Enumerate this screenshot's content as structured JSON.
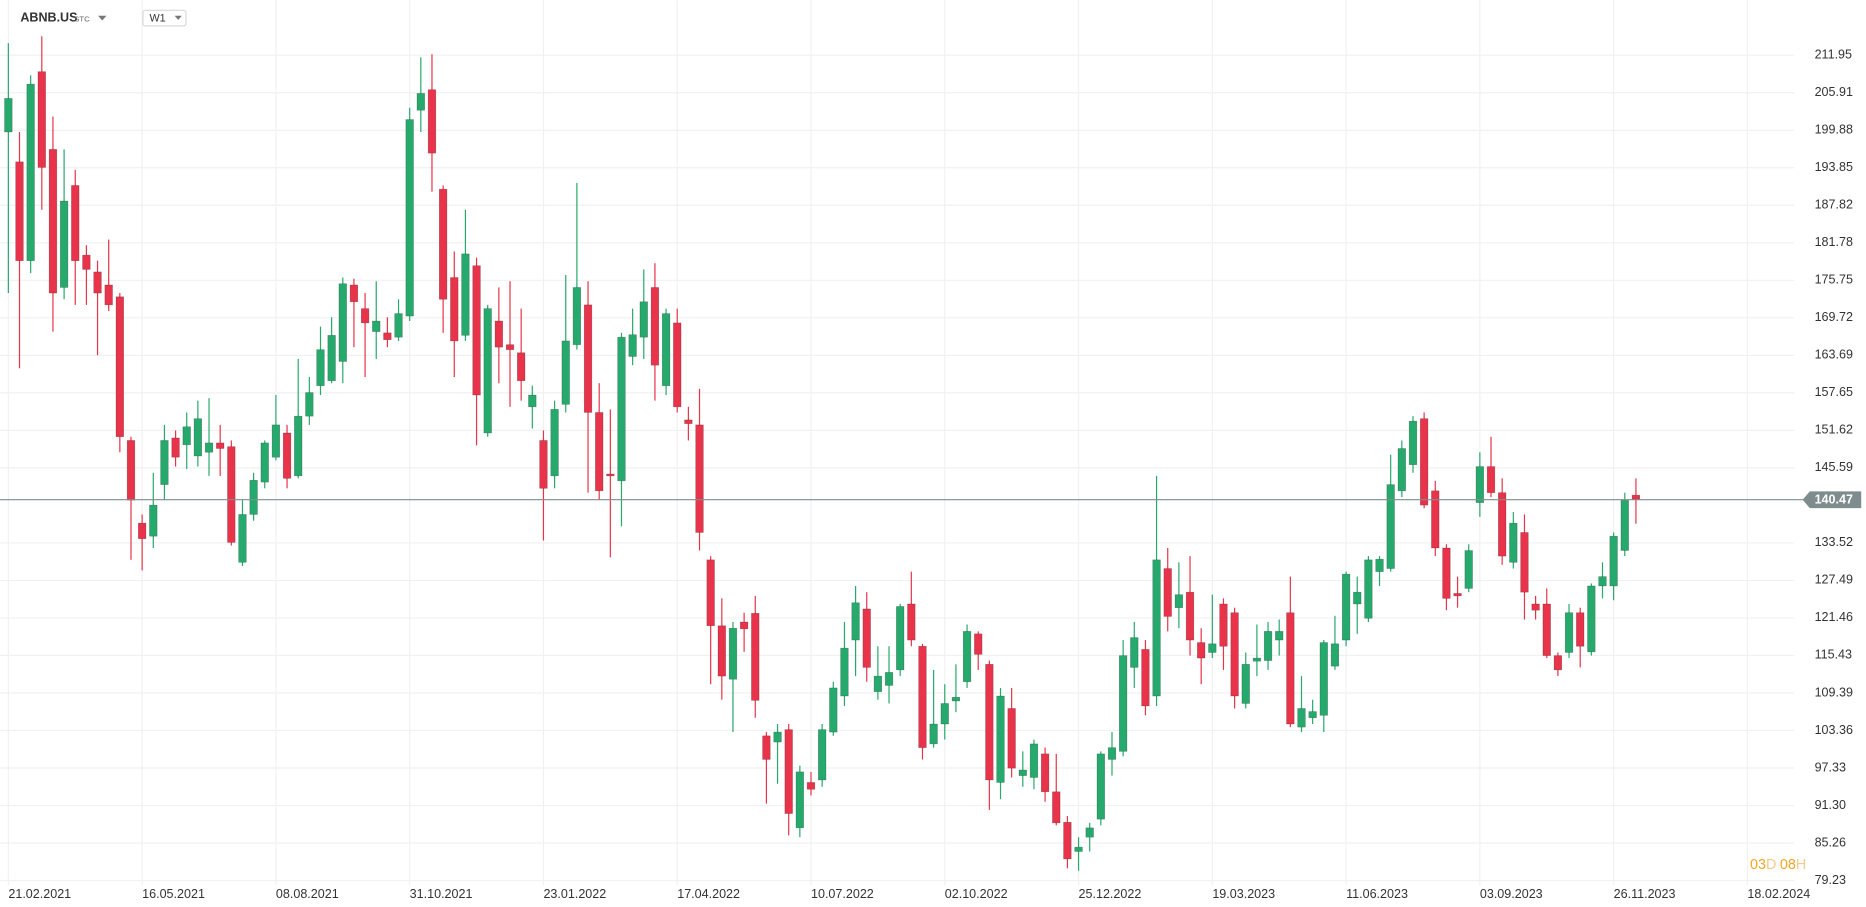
{
  "header": {
    "symbol": "ABNB.US",
    "market": "STC",
    "interval": "W1"
  },
  "countdown": [
    "03",
    "D",
    "08",
    "H"
  ],
  "chart_data": {
    "type": "candlestick",
    "up_color": "#26a96c",
    "down_color": "#e8334a",
    "grid": true,
    "last_price": {
      "value": 140.47,
      "color": "#7f8c8d"
    },
    "xlim": [
      -0.75,
      160.2
    ],
    "ylim": [
      78.46,
      220.8
    ],
    "xticks": [
      {
        "value": 0,
        "label": "21.02.2021"
      },
      {
        "value": 12,
        "label": "16.05.2021"
      },
      {
        "value": 24,
        "label": "08.08.2021"
      },
      {
        "value": 36,
        "label": "31.10.2021"
      },
      {
        "value": 48,
        "label": "23.01.2022"
      },
      {
        "value": 60,
        "label": "17.04.2022"
      },
      {
        "value": 72,
        "label": "10.07.2022"
      },
      {
        "value": 84,
        "label": "02.10.2022"
      },
      {
        "value": 96,
        "label": "25.12.2022"
      },
      {
        "value": 108,
        "label": "19.03.2023"
      },
      {
        "value": 120,
        "label": "11.06.2023"
      },
      {
        "value": 132,
        "label": "03.09.2023"
      },
      {
        "value": 144,
        "label": "26.11.2023"
      },
      {
        "value": 156,
        "label": "18.02.2024"
      }
    ],
    "yticks": [
      211.95,
      205.91,
      199.88,
      193.85,
      187.82,
      181.78,
      175.75,
      169.72,
      163.69,
      157.65,
      151.62,
      145.59,
      133.52,
      127.49,
      121.46,
      115.43,
      109.39,
      103.36,
      97.33,
      {
        "value": 91.3,
        "label": "91.30"
      },
      85.26,
      79.23
    ],
    "open": [
      199.6,
      194.8,
      178.9,
      209.3,
      196.8,
      174.6,
      191.0,
      179.8,
      177.1,
      175.0,
      173.1,
      150.0,
      136.7,
      134.6,
      142.9,
      150.4,
      149.3,
      147.5,
      148.1,
      149.6,
      149.0,
      130.4,
      138.1,
      143.3,
      147.3,
      151.2,
      144.3,
      153.9,
      158.8,
      159.6,
      162.7,
      175.0,
      171.2,
      167.5,
      167.3,
      166.6,
      170.0,
      203.1,
      206.4,
      190.4,
      176.2,
      166.9,
      178.1,
      151.2,
      169.2,
      165.4,
      164.1,
      155.4,
      150.0,
      144.3,
      155.8,
      165.4,
      171.8,
      154.5,
      144.6,
      143.5,
      163.5,
      166.6,
      174.6,
      158.8,
      168.9,
      153.3,
      152.5,
      130.8,
      120.2,
      111.6,
      120.8,
      122.2,
      102.5,
      101.5,
      103.5,
      87.7,
      95.0,
      95.4,
      103.1,
      108.9,
      117.9,
      122.9,
      109.6,
      110.6,
      113.1,
      123.7,
      116.9,
      101.2,
      104.4,
      108.1,
      111.2,
      118.9,
      114.0,
      95.0,
      106.9,
      96.1,
      95.8,
      99.6,
      93.5,
      88.6,
      83.9,
      86.2,
      89.1,
      98.7,
      100.0,
      113.5,
      116.4,
      108.9,
      129.4,
      123.1,
      125.6,
      117.5,
      115.9,
      123.7,
      122.3,
      107.7,
      114.5,
      114.6,
      117.9,
      122.3,
      103.9,
      105.4,
      105.8,
      113.7,
      117.9,
      123.7,
      121.4,
      128.9,
      129.4,
      141.9,
      146.1,
      153.5,
      141.9,
      132.7,
      125.4,
      126.2,
      140.0,
      145.8,
      141.6,
      130.4,
      135.2,
      123.7,
      123.7,
      115.4,
      115.9,
      122.3,
      116.0,
      126.6,
      126.6,
      132.3,
      141.2
    ],
    "high": [
      213.9,
      199.6,
      208.7,
      215.0,
      202.1,
      196.8,
      193.5,
      181.4,
      178.9,
      182.3,
      173.7,
      150.6,
      138.1,
      144.8,
      152.5,
      151.6,
      154.5,
      156.4,
      156.8,
      152.5,
      150.0,
      140.4,
      144.8,
      150.0,
      157.3,
      152.5,
      163.1,
      160.2,
      168.3,
      169.8,
      176.2,
      176.0,
      173.7,
      175.6,
      169.8,
      172.7,
      203.5,
      211.6,
      212.1,
      191.0,
      180.4,
      187.1,
      179.4,
      171.8,
      174.6,
      175.6,
      171.2,
      158.8,
      151.6,
      156.4,
      176.6,
      191.4,
      175.6,
      159.2,
      155.0,
      167.3,
      171.2,
      177.5,
      178.5,
      171.2,
      171.2,
      155.4,
      158.3,
      131.4,
      124.6,
      120.8,
      122.3,
      125.0,
      103.1,
      104.4,
      104.4,
      97.7,
      96.7,
      104.4,
      111.2,
      120.8,
      126.6,
      125.6,
      116.9,
      116.9,
      123.7,
      128.9,
      117.3,
      113.1,
      110.8,
      114.0,
      120.4,
      119.3,
      114.6,
      110.2,
      110.2,
      100.0,
      101.9,
      100.6,
      99.6,
      89.6,
      86.2,
      88.5,
      100.0,
      103.1,
      117.9,
      120.8,
      117.9,
      144.3,
      132.7,
      130.4,
      131.4,
      119.8,
      125.2,
      124.6,
      123.1,
      115.9,
      120.4,
      120.8,
      121.2,
      128.1,
      112.1,
      108.3,
      117.9,
      121.8,
      128.9,
      128.1,
      131.4,
      131.4,
      147.7,
      150.0,
      153.9,
      154.5,
      143.5,
      133.3,
      128.1,
      133.3,
      148.1,
      150.6,
      143.9,
      138.5,
      138.1,
      125.0,
      126.2,
      115.9,
      123.7,
      123.1,
      127.0,
      130.4,
      135.2,
      141.6,
      143.9
    ],
    "low": [
      173.7,
      161.6,
      176.9,
      187.1,
      167.5,
      172.7,
      171.8,
      171.8,
      163.7,
      170.8,
      148.1,
      130.8,
      129.1,
      132.7,
      140.4,
      145.8,
      145.4,
      145.8,
      144.3,
      144.3,
      133.1,
      129.8,
      137.1,
      142.3,
      146.8,
      142.3,
      143.9,
      152.5,
      157.3,
      159.2,
      159.2,
      165.0,
      160.2,
      163.1,
      165.0,
      166.0,
      169.2,
      199.6,
      190.0,
      167.3,
      160.2,
      166.0,
      149.2,
      150.6,
      159.2,
      155.4,
      156.4,
      151.9,
      133.9,
      142.3,
      154.5,
      164.6,
      141.6,
      140.4,
      131.2,
      136.2,
      162.1,
      163.1,
      156.4,
      157.3,
      154.5,
      150.0,
      132.3,
      110.8,
      108.3,
      103.1,
      116.0,
      105.4,
      91.6,
      94.8,
      86.5,
      86.2,
      92.9,
      94.3,
      102.5,
      107.3,
      112.1,
      111.2,
      108.3,
      107.7,
      112.1,
      116.9,
      98.7,
      100.6,
      101.9,
      106.3,
      110.2,
      113.1,
      90.6,
      92.3,
      95.8,
      94.3,
      93.9,
      91.9,
      88.1,
      81.2,
      80.8,
      83.9,
      88.1,
      96.1,
      99.2,
      110.2,
      105.8,
      107.3,
      119.3,
      119.8,
      115.4,
      110.8,
      115.0,
      113.1,
      106.9,
      106.9,
      112.1,
      113.1,
      115.4,
      103.9,
      103.1,
      104.4,
      103.1,
      113.1,
      116.9,
      118.9,
      120.8,
      126.6,
      128.9,
      140.9,
      144.8,
      139.1,
      131.4,
      122.7,
      123.1,
      125.6,
      137.7,
      140.9,
      130.0,
      129.4,
      121.2,
      121.2,
      115.0,
      112.1,
      115.0,
      113.5,
      115.4,
      124.6,
      124.3,
      131.4,
      136.6
    ],
    "close": [
      205.0,
      178.9,
      207.3,
      193.9,
      173.7,
      188.5,
      178.9,
      177.5,
      173.7,
      171.8,
      150.6,
      140.4,
      134.2,
      139.6,
      150.0,
      147.3,
      152.2,
      153.5,
      149.6,
      148.7,
      133.6,
      138.1,
      143.6,
      149.6,
      152.5,
      143.9,
      153.9,
      157.7,
      164.6,
      166.9,
      175.2,
      172.3,
      168.9,
      169.2,
      166.2,
      170.4,
      201.6,
      205.8,
      196.2,
      172.7,
      166.0,
      180.0,
      157.3,
      171.2,
      165.0,
      164.6,
      159.6,
      157.3,
      142.3,
      155.0,
      166.0,
      174.6,
      154.5,
      141.9,
      144.3,
      166.6,
      167.0,
      172.3,
      162.1,
      170.4,
      155.4,
      152.7,
      135.2,
      120.2,
      112.1,
      119.8,
      119.7,
      108.2,
      98.7,
      103.1,
      90.0,
      96.7,
      93.9,
      103.5,
      110.2,
      116.6,
      123.9,
      113.5,
      112.1,
      112.7,
      123.3,
      117.9,
      100.6,
      104.4,
      107.7,
      108.7,
      119.3,
      115.6,
      95.4,
      108.9,
      97.3,
      97.0,
      101.2,
      93.5,
      88.5,
      82.7,
      84.6,
      87.7,
      99.6,
      100.6,
      115.4,
      118.3,
      107.3,
      130.8,
      121.7,
      125.2,
      117.9,
      115.0,
      117.3,
      116.9,
      108.9,
      114.0,
      115.0,
      119.3,
      119.3,
      104.4,
      106.9,
      106.4,
      117.5,
      117.3,
      128.5,
      125.6,
      130.8,
      130.9,
      142.9,
      148.7,
      153.1,
      139.6,
      132.7,
      124.6,
      125.0,
      132.3,
      145.8,
      141.6,
      131.4,
      136.7,
      125.6,
      122.7,
      115.4,
      113.1,
      122.3,
      116.9,
      126.6,
      128.1,
      134.6,
      140.4,
      140.47
    ]
  }
}
